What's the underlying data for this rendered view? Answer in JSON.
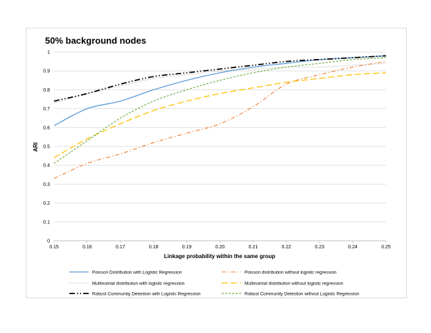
{
  "chart_data": {
    "type": "line",
    "title": "50% background nodes",
    "xlabel": "Linkage probability within the same group",
    "ylabel": "ARI",
    "xlim": [
      0.15,
      0.25
    ],
    "ylim": [
      0,
      1
    ],
    "x_ticks": [
      "0.15",
      "0.16",
      "0.17",
      "0.18",
      "0.19",
      "0.20",
      "0.21",
      "0.22",
      "0.23",
      "0.24",
      "0.25"
    ],
    "y_ticks": [
      "0",
      "0.1",
      "0.2",
      "0.3",
      "0.4",
      "0.5",
      "0.6",
      "0.7",
      "0.8",
      "0.9",
      "1"
    ],
    "grid": true,
    "legend_position": "bottom",
    "x": [
      0.15,
      0.16,
      0.17,
      0.18,
      0.19,
      0.2,
      0.21,
      0.22,
      0.23,
      0.24,
      0.25
    ],
    "series": [
      {
        "name": "Poisson Distribution with Logistic Regression",
        "color": "#5b9bd5",
        "dash": "solid",
        "values": [
          0.61,
          0.7,
          0.74,
          0.8,
          0.85,
          0.89,
          0.92,
          0.94,
          0.96,
          0.97,
          0.98
        ]
      },
      {
        "name": "Poisson distribution without logistic regression",
        "color": "#ed7d31",
        "dash": "dashdot",
        "values": [
          0.33,
          0.41,
          0.46,
          0.52,
          0.57,
          0.62,
          0.71,
          0.83,
          0.88,
          0.92,
          0.95
        ]
      },
      {
        "name": "Multinomial distribution with logistic regression",
        "color": "#a5a5a5",
        "dash": "dotted",
        "values": [
          0.73,
          0.78,
          0.82,
          0.86,
          0.88,
          0.9,
          0.91,
          0.92,
          0.92,
          0.93,
          0.94
        ]
      },
      {
        "name": "Multinomial distribution without logistic regression",
        "color": "#ffc000",
        "dash": "longdash",
        "values": [
          0.44,
          0.54,
          0.62,
          0.69,
          0.74,
          0.78,
          0.81,
          0.84,
          0.86,
          0.88,
          0.89
        ]
      },
      {
        "name": "Robust Community Detection with Logistic Regression",
        "color": "#000000",
        "dash": "longdashdot",
        "values": [
          0.74,
          0.78,
          0.83,
          0.87,
          0.89,
          0.91,
          0.93,
          0.95,
          0.96,
          0.97,
          0.98
        ]
      },
      {
        "name": "Robust Community Detection without Logistic Regression",
        "color": "#70ad47",
        "dash": "shortdash",
        "values": [
          0.41,
          0.53,
          0.65,
          0.74,
          0.8,
          0.85,
          0.89,
          0.92,
          0.94,
          0.96,
          0.97
        ]
      }
    ]
  }
}
